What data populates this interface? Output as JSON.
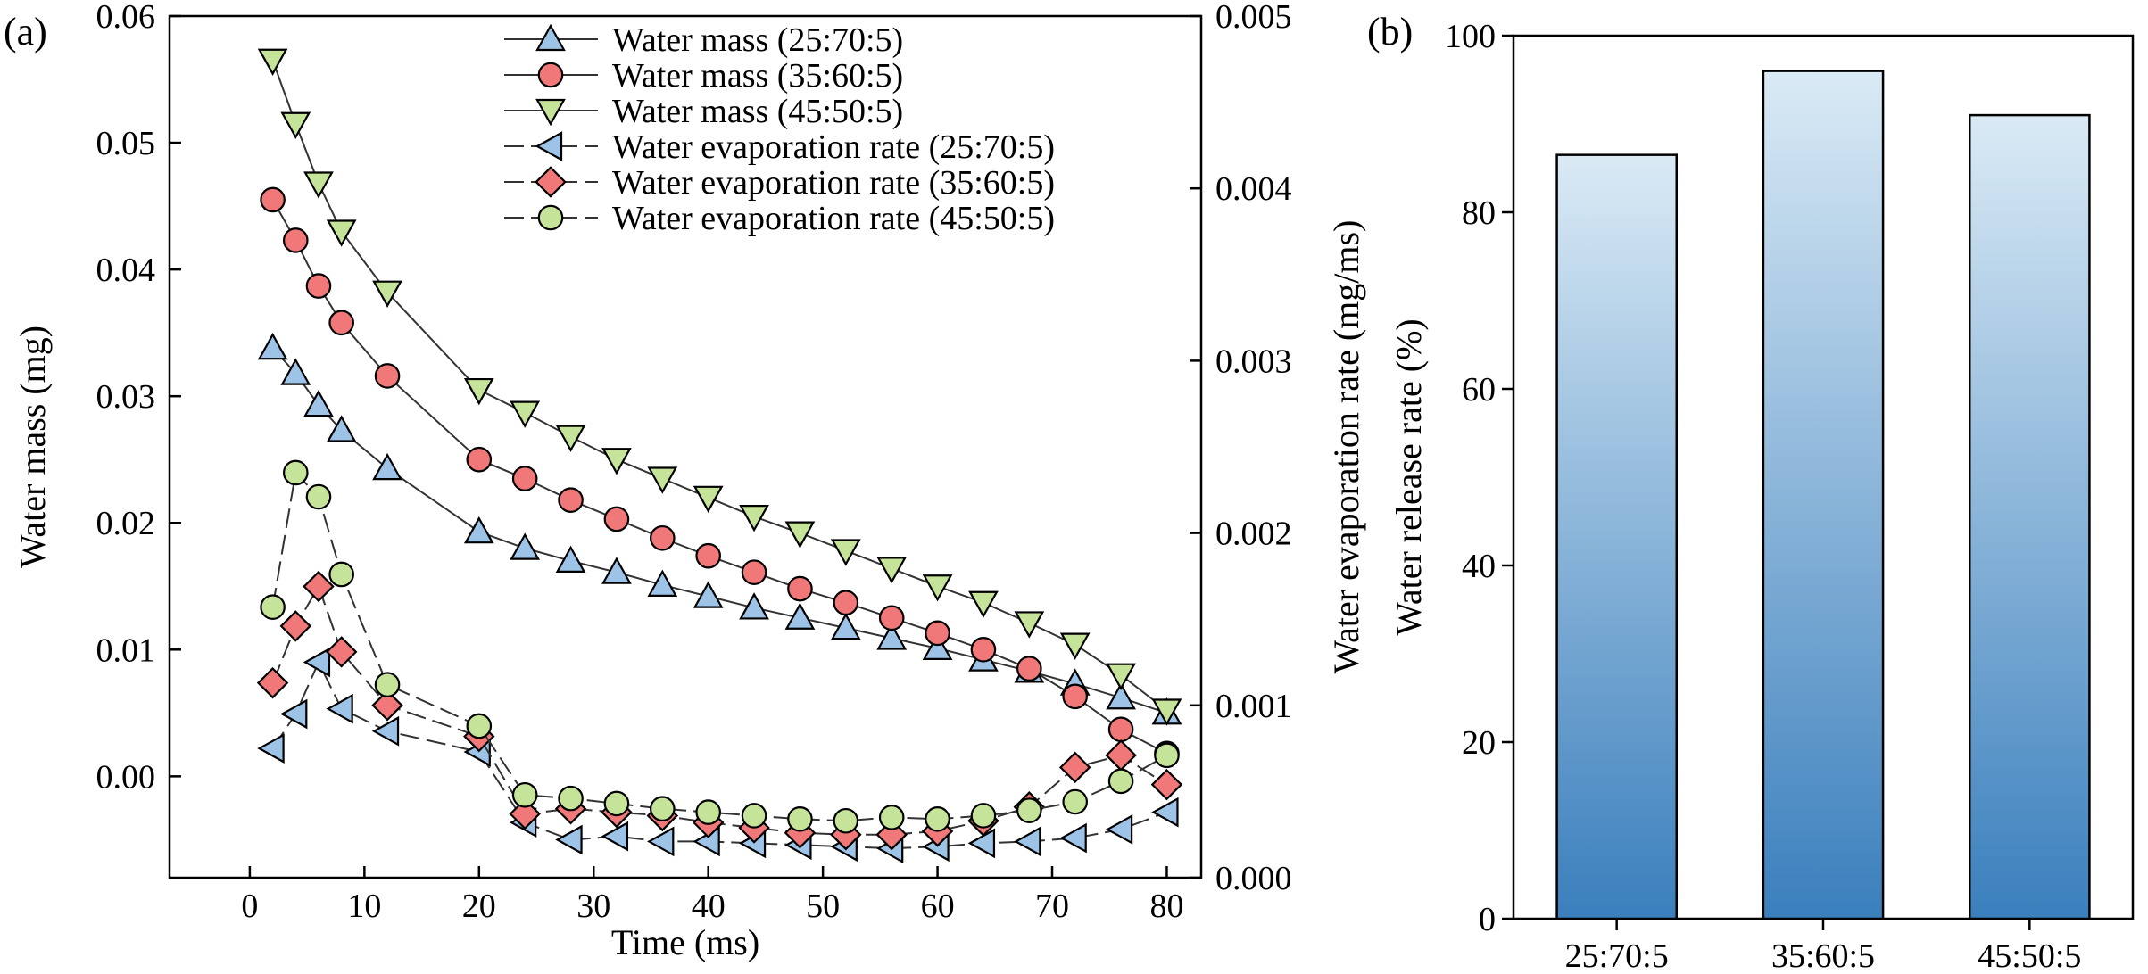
{
  "chart_data": [
    {
      "panel_label": "(a)",
      "type": "line",
      "xlabel": "Time (ms)",
      "ylabel": "Water mass (mg)",
      "y2label": "Water evaporation rate (mg/ms)",
      "xlim": [
        -7,
        83
      ],
      "ylim": [
        -0.008,
        0.06
      ],
      "y2lim": [
        0.0,
        0.005
      ],
      "xticks": [
        0,
        10,
        20,
        30,
        40,
        50,
        60,
        70,
        80
      ],
      "yticks": [
        "0.00",
        "0.01",
        "0.02",
        "0.03",
        "0.04",
        "0.05",
        "0.06"
      ],
      "y2ticks": [
        "0.000",
        "0.001",
        "0.002",
        "0.003",
        "0.004",
        "0.005"
      ],
      "series": [
        {
          "name": "Water mass (25:70:5)",
          "axis": "left",
          "marker": "triangle-up",
          "color": "#9dc3e6",
          "dash": "solid",
          "x": [
            2,
            4,
            6,
            8,
            12,
            20,
            24,
            28,
            32,
            36,
            40,
            44,
            48,
            52,
            56,
            60,
            64,
            68,
            72,
            76,
            80
          ],
          "values": [
            0.0338,
            0.0318,
            0.0293,
            0.0273,
            0.0243,
            0.0193,
            0.018,
            0.017,
            0.0161,
            0.0151,
            0.0142,
            0.0133,
            0.0125,
            0.0117,
            0.0109,
            0.0101,
            0.0092,
            0.0083,
            0.0073,
            0.0062,
            0.005
          ]
        },
        {
          "name": "Water mass (35:60:5)",
          "axis": "left",
          "marker": "circle",
          "color": "#f07878",
          "dash": "solid",
          "x": [
            2,
            4,
            6,
            8,
            12,
            20,
            24,
            28,
            32,
            36,
            40,
            44,
            48,
            52,
            56,
            60,
            64,
            68,
            72,
            76,
            80
          ],
          "values": [
            0.0455,
            0.0423,
            0.0387,
            0.0358,
            0.0316,
            0.025,
            0.0235,
            0.0218,
            0.0203,
            0.0188,
            0.0174,
            0.0161,
            0.0148,
            0.0137,
            0.0125,
            0.0113,
            0.01,
            0.0085,
            0.0063,
            0.0037,
            0.0018
          ]
        },
        {
          "name": "Water mass (45:50:5)",
          "axis": "left",
          "marker": "triangle-down",
          "color": "#c6e39a",
          "dash": "solid",
          "x": [
            2,
            4,
            6,
            8,
            12,
            20,
            24,
            28,
            32,
            36,
            40,
            44,
            48,
            52,
            56,
            60,
            64,
            68,
            72,
            76,
            80
          ],
          "values": [
            0.0565,
            0.0515,
            0.0468,
            0.043,
            0.0382,
            0.0305,
            0.0287,
            0.0268,
            0.025,
            0.0235,
            0.022,
            0.0205,
            0.0192,
            0.0178,
            0.0164,
            0.015,
            0.0137,
            0.0121,
            0.0104,
            0.008,
            0.0052
          ]
        },
        {
          "name": "Water evaporation rate (25:70:5)",
          "axis": "right",
          "marker": "triangle-left",
          "color": "#9dc3e6",
          "dash": "dashed",
          "x": [
            2,
            4,
            6,
            8,
            12,
            20,
            24,
            28,
            32,
            36,
            40,
            44,
            48,
            52,
            56,
            60,
            64,
            68,
            72,
            76,
            80
          ],
          "values": [
            0.00075,
            0.00095,
            0.00125,
            0.00098,
            0.00085,
            0.00073,
            0.00032,
            0.00022,
            0.00024,
            0.00021,
            0.00021,
            0.0002,
            0.00019,
            0.00018,
            0.00017,
            0.00018,
            0.0002,
            0.00021,
            0.00023,
            0.00028,
            0.00038
          ]
        },
        {
          "name": "Water evaporation rate (35:60:5)",
          "axis": "right",
          "marker": "diamond",
          "color": "#f07878",
          "dash": "dashed",
          "x": [
            2,
            4,
            6,
            8,
            12,
            20,
            24,
            28,
            32,
            36,
            40,
            44,
            48,
            52,
            56,
            60,
            64,
            68,
            72,
            76,
            80
          ],
          "values": [
            0.00113,
            0.00146,
            0.00169,
            0.00131,
            0.001,
            0.00082,
            0.00037,
            0.0004,
            0.00038,
            0.00036,
            0.00032,
            0.00029,
            0.00026,
            0.00025,
            0.00025,
            0.00027,
            0.00033,
            0.00041,
            0.00064,
            0.00071,
            0.00054
          ]
        },
        {
          "name": "Water evaporation rate (45:50:5)",
          "axis": "right",
          "marker": "circle",
          "color": "#c6e39a",
          "dash": "dashed",
          "x": [
            2,
            4,
            6,
            8,
            12,
            20,
            24,
            28,
            32,
            36,
            40,
            44,
            48,
            52,
            56,
            60,
            64,
            68,
            72,
            76,
            80
          ],
          "values": [
            0.00157,
            0.00235,
            0.00221,
            0.00176,
            0.00112,
            0.00088,
            0.00048,
            0.00046,
            0.00043,
            0.0004,
            0.00038,
            0.00036,
            0.00034,
            0.00033,
            0.00035,
            0.00034,
            0.00036,
            0.00039,
            0.00044,
            0.00056,
            0.00071
          ]
        }
      ]
    },
    {
      "panel_label": "(b)",
      "type": "bar",
      "categories": [
        "25:70:5",
        "35:60:5",
        "45:50:5"
      ],
      "values": [
        86.5,
        96,
        91
      ],
      "xlabel": "",
      "ylabel": "Water release rate (%)",
      "ylim": [
        0,
        100
      ],
      "yticks": [
        "0",
        "20",
        "40",
        "60",
        "80",
        "100"
      ],
      "bar_color_top": "#daeaf5",
      "bar_color_bottom": "#3a7fbd"
    }
  ]
}
